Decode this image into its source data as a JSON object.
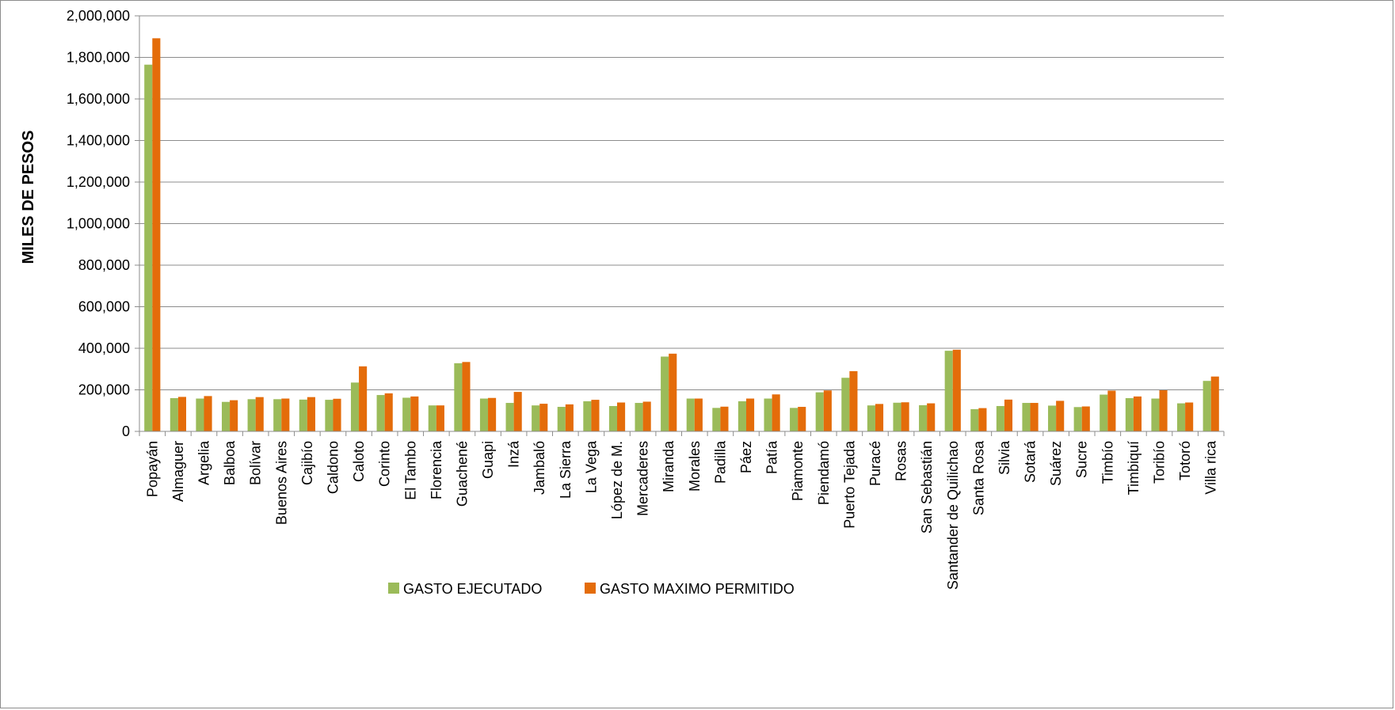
{
  "chart_data": {
    "type": "bar",
    "title": "",
    "xlabel": "",
    "ylabel": "MILES DE PESOS",
    "ylim": [
      0,
      2000000
    ],
    "yticks": [
      0,
      200000,
      400000,
      600000,
      800000,
      1000000,
      1200000,
      1400000,
      1600000,
      1800000,
      2000000
    ],
    "ytick_labels": [
      "0",
      "200,000",
      "400,000",
      "600,000",
      "800,000",
      "1,000,000",
      "1,200,000",
      "1,400,000",
      "1,600,000",
      "1,800,000",
      "2,000,000"
    ],
    "grid": true,
    "legend_position": "bottom",
    "categories": [
      "Popayán",
      "Almaguer",
      "Argelia",
      "Balboa",
      "Bolívar",
      "Buenos Aires",
      "Cajibío",
      "Caldono",
      "Caloto",
      "Corinto",
      "El Tambo",
      "Florencia",
      "Guachené",
      "Guapi",
      "Inzá",
      "Jambaló",
      "La Sierra",
      "La Vega",
      "López de M.",
      "Mercaderes",
      "Miranda",
      "Morales",
      "Padilla",
      "Páez",
      "Patía",
      "Piamonte",
      "Piendamó",
      "Puerto Tejada",
      "Puracé",
      "Rosas",
      "San Sebastián",
      "Santander de Quilichao",
      "Santa Rosa",
      "Silvia",
      "Sotará",
      "Suárez",
      "Sucre",
      "Timbío",
      "Timbiquí",
      "Toribío",
      "Totoró",
      "Villa rica"
    ],
    "series": [
      {
        "name": "GASTO EJECUTADO",
        "color": "#9BBB59",
        "values": [
          1765000,
          160000,
          158000,
          142000,
          155000,
          155000,
          153000,
          152000,
          235000,
          175000,
          162000,
          125000,
          328000,
          158000,
          137000,
          125000,
          118000,
          145000,
          122000,
          137000,
          360000,
          158000,
          113000,
          145000,
          158000,
          113000,
          188000,
          258000,
          125000,
          138000,
          126000,
          388000,
          107000,
          122000,
          137000,
          124000,
          117000,
          177000,
          160000,
          158000,
          135000,
          243000
        ]
      },
      {
        "name": "GASTO MAXIMO PERMITIDO",
        "color": "#E46C0A",
        "values": [
          1892000,
          166000,
          170000,
          150000,
          165000,
          158000,
          165000,
          157000,
          313000,
          183000,
          168000,
          125000,
          334000,
          161000,
          190000,
          133000,
          130000,
          152000,
          139000,
          143000,
          374000,
          158000,
          119000,
          158000,
          178000,
          118000,
          197000,
          290000,
          132000,
          140000,
          135000,
          393000,
          112000,
          153000,
          137000,
          147000,
          120000,
          196000,
          168000,
          198000,
          139000,
          264000
        ]
      }
    ]
  }
}
